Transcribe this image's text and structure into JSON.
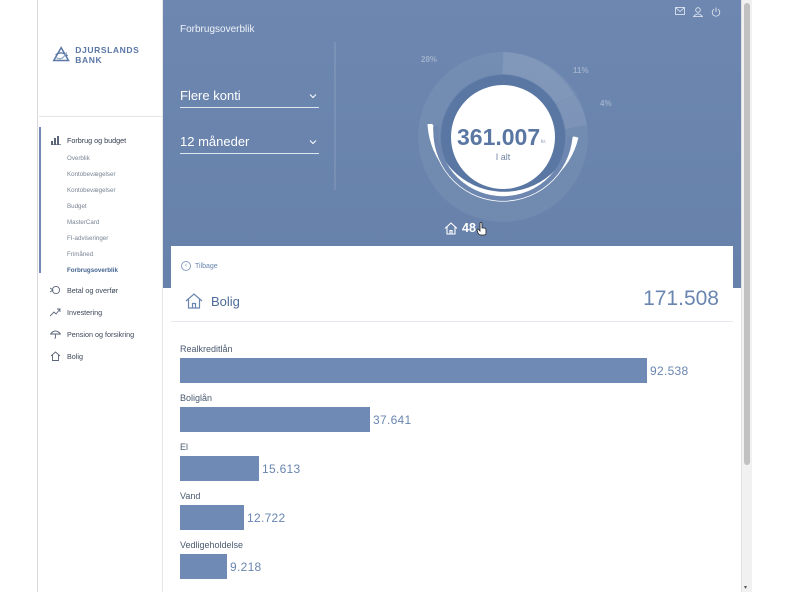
{
  "brand": {
    "name": "DJURSLANDS BANK"
  },
  "sidebar": {
    "items": [
      {
        "label": "Forbrug og budget",
        "icon": "bar-chart-icon"
      },
      {
        "label": "Betal og overfør",
        "icon": "transfer-icon"
      },
      {
        "label": "Investering",
        "icon": "trend-icon"
      },
      {
        "label": "Pension og forsikring",
        "icon": "umbrella-icon"
      },
      {
        "label": "Bolig",
        "icon": "house-icon"
      }
    ],
    "subitems": [
      {
        "label": "Overblik"
      },
      {
        "label": "Kontobevægelser"
      },
      {
        "label": "Kontobevægelser"
      },
      {
        "label": "Budget"
      },
      {
        "label": "MasterCard"
      },
      {
        "label": "FI-adviseringer"
      },
      {
        "label": "Frimåned"
      },
      {
        "label": "Forbrugsoverblik",
        "active": true
      }
    ]
  },
  "hero": {
    "title": "Forbrugsoverblik",
    "account_select": "Flere konti",
    "period_select": "12 måneder",
    "total_value": "361.007",
    "total_unit": "kr.",
    "total_label": "I alt",
    "percents": {
      "p1": "28%",
      "p2": "11%",
      "p3": "4%"
    },
    "selected_share": "48",
    "colors": {
      "background": "#6d87b0",
      "accent": "#5a77a3"
    }
  },
  "detail": {
    "back_label": "Tilbage",
    "category": "Bolig",
    "category_total": "171.508",
    "rows": [
      {
        "label": "Realkreditlån",
        "value": "92.538",
        "amount": 92538
      },
      {
        "label": "Boliglån",
        "value": "37.641",
        "amount": 37641
      },
      {
        "label": "El",
        "value": "15.613",
        "amount": 15613
      },
      {
        "label": "Vand",
        "value": "12.722",
        "amount": 12722
      },
      {
        "label": "Vedligeholdelse",
        "value": "9.218",
        "amount": 9218
      }
    ]
  }
}
